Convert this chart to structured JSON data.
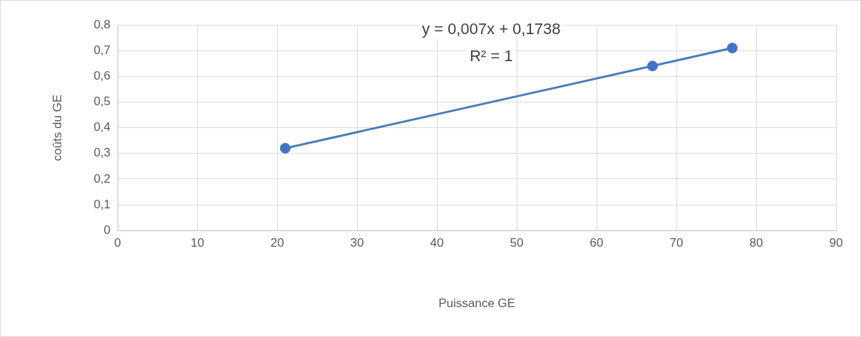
{
  "chart_data": {
    "type": "scatter",
    "xlabel": "Puissance GE",
    "ylabel": "coûts du GE",
    "annotations": [
      "y = 0,007x + 0,1738",
      "R² = 1"
    ],
    "series": [
      {
        "color": "#4472c4",
        "marker": "circle",
        "x": [
          21,
          67,
          77
        ],
        "values": [
          0.32,
          0.64,
          0.71
        ]
      },
      {
        "type": "line",
        "color": "#4a7ebb",
        "marker": "none",
        "x": [
          21,
          77
        ],
        "values": [
          0.32,
          0.71
        ]
      }
    ],
    "xlim": [
      0,
      90
    ],
    "xticks": [
      0,
      10,
      20,
      30,
      40,
      50,
      60,
      70,
      80,
      90
    ],
    "ylim": [
      0,
      0.8
    ],
    "yticks": [
      {
        "value": 0,
        "label": "0"
      },
      {
        "value": 0.1,
        "label": "0,1"
      },
      {
        "value": 0.2,
        "label": "0,2"
      },
      {
        "value": 0.3,
        "label": "0,3"
      },
      {
        "value": 0.4,
        "label": "0,4"
      },
      {
        "value": 0.5,
        "label": "0,5"
      },
      {
        "value": 0.6,
        "label": "0,6"
      },
      {
        "value": 0.7,
        "label": "0,7"
      },
      {
        "value": 0.8,
        "label": "0,8"
      }
    ],
    "grid": true,
    "line_style": "solid"
  }
}
